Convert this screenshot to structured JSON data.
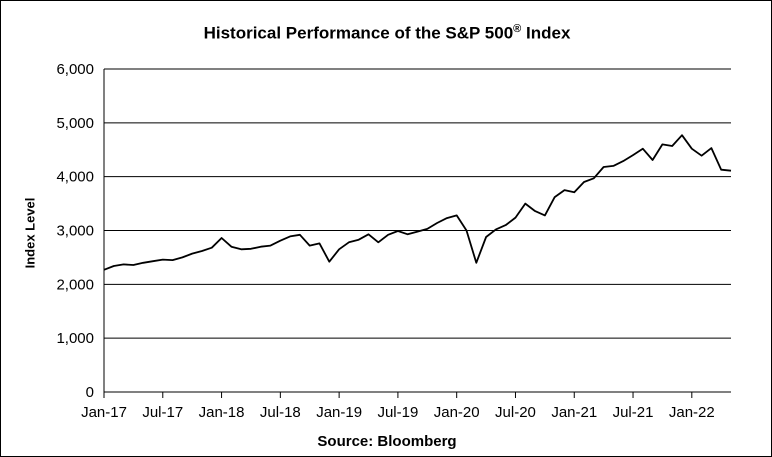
{
  "chart_data": {
    "type": "line",
    "title": "Historical Performance of the S&P 500",
    "title_mark": "®",
    "title_suffix": " Index",
    "xlabel": "Source: Bloomberg",
    "ylabel": "Index Level",
    "ylim": [
      0,
      6000
    ],
    "yticks": [
      0,
      1000,
      2000,
      3000,
      4000,
      5000,
      6000
    ],
    "ytick_labels": [
      "0",
      "1,000",
      "2,000",
      "3,000",
      "4,000",
      "5,000",
      "6,000"
    ],
    "xlim": [
      "2017-01",
      "2022-05"
    ],
    "xticks": [
      "2017-01",
      "2017-07",
      "2018-01",
      "2018-07",
      "2019-01",
      "2019-07",
      "2020-01",
      "2020-07",
      "2021-01",
      "2021-07",
      "2022-01"
    ],
    "xtick_labels": [
      "Jan-17",
      "Jul-17",
      "Jan-18",
      "Jul-18",
      "Jan-19",
      "Jul-19",
      "Jan-20",
      "Jul-20",
      "Jan-21",
      "Jul-21",
      "Jan-22"
    ],
    "grid": "horizontal",
    "legend": "none",
    "line_color": "#000000",
    "series": [
      {
        "x": [
          "2017-01",
          "2017-02",
          "2017-03",
          "2017-04",
          "2017-05",
          "2017-06",
          "2017-07",
          "2017-08",
          "2017-09",
          "2017-10",
          "2017-11",
          "2017-12",
          "2018-01",
          "2018-02",
          "2018-03",
          "2018-04",
          "2018-05",
          "2018-06",
          "2018-07",
          "2018-08",
          "2018-09",
          "2018-10",
          "2018-11",
          "2018-12",
          "2019-01",
          "2019-02",
          "2019-03",
          "2019-04",
          "2019-05",
          "2019-06",
          "2019-07",
          "2019-08",
          "2019-09",
          "2019-10",
          "2019-11",
          "2019-12",
          "2020-01",
          "2020-02",
          "2020-03",
          "2020-04",
          "2020-05",
          "2020-06",
          "2020-07",
          "2020-08",
          "2020-09",
          "2020-10",
          "2020-11",
          "2020-12",
          "2021-01",
          "2021-02",
          "2021-03",
          "2021-04",
          "2021-05",
          "2021-06",
          "2021-07",
          "2021-08",
          "2021-09",
          "2021-10",
          "2021-11",
          "2021-12",
          "2022-01",
          "2022-02",
          "2022-03",
          "2022-04",
          "2022-05"
        ],
        "values": [
          2270,
          2340,
          2370,
          2360,
          2400,
          2430,
          2460,
          2450,
          2500,
          2570,
          2620,
          2680,
          2860,
          2700,
          2650,
          2660,
          2700,
          2720,
          2810,
          2890,
          2920,
          2720,
          2760,
          2420,
          2650,
          2780,
          2830,
          2930,
          2780,
          2920,
          2990,
          2930,
          2980,
          3030,
          3140,
          3230,
          3280,
          3000,
          2400,
          2880,
          3020,
          3100,
          3240,
          3500,
          3360,
          3280,
          3620,
          3750,
          3710,
          3900,
          3970,
          4180,
          4200,
          4290,
          4400,
          4520,
          4310,
          4600,
          4570,
          4770,
          4520,
          4390,
          4530,
          4130,
          4110
        ]
      }
    ]
  }
}
